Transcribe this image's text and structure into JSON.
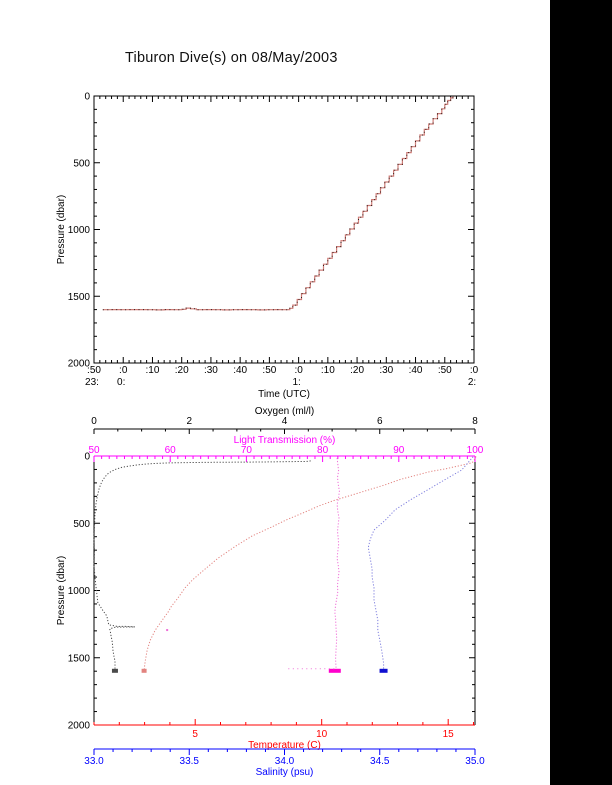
{
  "chart_data": [
    {
      "type": "line",
      "name": "dive-depth-vs-time",
      "title": "Tiburon Dive(s) on 08/May/2003",
      "xlabel": "Time (UTC)",
      "ylabel": "Pressure (dbar)",
      "x_range": [
        0,
        130
      ],
      "x_major_step": 10,
      "x_minor_step": 2,
      "x_ticks": [
        {
          "label": ":50",
          "hour": "23:"
        },
        {
          "label": ":0",
          "hour": "0:"
        },
        {
          "label": ":10"
        },
        {
          "label": ":20"
        },
        {
          "label": ":30"
        },
        {
          "label": ":40"
        },
        {
          "label": ":50"
        },
        {
          "label": ":0",
          "hour": "1:"
        },
        {
          "label": ":10"
        },
        {
          "label": ":20"
        },
        {
          "label": ":30"
        },
        {
          "label": ":40"
        },
        {
          "label": ":50"
        },
        {
          "label": ":0",
          "hour": "2:"
        }
      ],
      "ylim": [
        0,
        2000
      ],
      "y_major_step": 500,
      "y_minor_step": 100,
      "y_ticks": [
        "0",
        "500",
        "1000",
        "1500",
        "2000"
      ],
      "series": [
        {
          "name": "dive-profile",
          "style": "steps",
          "color": "#cf7d78",
          "overlay_color": "#30201c",
          "points": [
            [
              3,
              1601
            ],
            [
              6,
              1600
            ],
            [
              9,
              1601
            ],
            [
              12,
              1600
            ],
            [
              15,
              1600
            ],
            [
              18,
              1601
            ],
            [
              21,
              1602
            ],
            [
              24,
              1600
            ],
            [
              27,
              1601
            ],
            [
              30,
              1598
            ],
            [
              31.5,
              1589
            ],
            [
              33,
              1594
            ],
            [
              35,
              1601
            ],
            [
              38,
              1600
            ],
            [
              41,
              1601
            ],
            [
              44,
              1602
            ],
            [
              47,
              1601
            ],
            [
              50,
              1600
            ],
            [
              53,
              1601
            ],
            [
              56,
              1602
            ],
            [
              59,
              1601
            ],
            [
              62,
              1600
            ],
            [
              64,
              1601
            ],
            [
              66,
              1601
            ],
            [
              67,
              1590
            ],
            [
              68,
              1566
            ],
            [
              69.5,
              1524
            ],
            [
              71,
              1480
            ],
            [
              72.5,
              1436
            ],
            [
              74,
              1392
            ],
            [
              75.5,
              1348
            ],
            [
              77,
              1304
            ],
            [
              78.5,
              1260
            ],
            [
              80,
              1216
            ],
            [
              81.5,
              1172
            ],
            [
              83,
              1128
            ],
            [
              84.5,
              1084
            ],
            [
              86,
              1040
            ],
            [
              87.5,
              996
            ],
            [
              89,
              952
            ],
            [
              90.5,
              908
            ],
            [
              92,
              864
            ],
            [
              93.5,
              820
            ],
            [
              95,
              776
            ],
            [
              96.5,
              732
            ],
            [
              98,
              688
            ],
            [
              99.5,
              644
            ],
            [
              101,
              600
            ],
            [
              102.5,
              556
            ],
            [
              104,
              512
            ],
            [
              105.5,
              468
            ],
            [
              107,
              424
            ],
            [
              108.5,
              380
            ],
            [
              110,
              336
            ],
            [
              111.5,
              292
            ],
            [
              113,
              250
            ],
            [
              114.5,
              210
            ],
            [
              116,
              170
            ],
            [
              117.5,
              132
            ],
            [
              119,
              96
            ],
            [
              120,
              62
            ],
            [
              121,
              34
            ],
            [
              122,
              14
            ],
            [
              122.8,
              4
            ]
          ]
        }
      ]
    },
    {
      "type": "scatter",
      "name": "ctd-profiles-vs-pressure",
      "ylabel": "Pressure (dbar)",
      "ylim": [
        0,
        2000
      ],
      "y_major_step": 500,
      "y_minor_step": 100,
      "y_ticks": [
        "0",
        "500",
        "1000",
        "1500",
        "2000"
      ],
      "x_axes": {
        "oxygen": {
          "label": "Oxygen (ml/l)",
          "color": "#000000",
          "range": [
            0,
            8
          ],
          "major_ticks": [
            0,
            2,
            4,
            6,
            8
          ],
          "tick_labels": [
            "0",
            "2",
            "4",
            "6",
            "8"
          ],
          "minor_step": 0.5,
          "position": "floating-top"
        },
        "light": {
          "label": "Light Transmission (%)",
          "color": "#ff00ff",
          "range": [
            50,
            100
          ],
          "major_ticks": [
            50,
            60,
            70,
            80,
            90,
            100
          ],
          "tick_labels": [
            "50",
            "60",
            "70",
            "80",
            "90",
            "100"
          ],
          "minor_step": 1,
          "position": "top-border"
        },
        "temperature": {
          "label": "Temperature (C)",
          "color": "#ff0000",
          "range": [
            1,
            16.06
          ],
          "major_ticks": [
            5,
            10,
            15
          ],
          "tick_labels": [
            "5",
            "10",
            "15"
          ],
          "minor_step": 1,
          "position": "bottom-border"
        },
        "salinity": {
          "label": "Salinity (psu)",
          "color": "#0000ff",
          "range": [
            33,
            35
          ],
          "major_ticks": [
            33,
            33.5,
            34,
            34.5,
            35
          ],
          "tick_labels": [
            "33.0",
            "33.5",
            "34.0",
            "34.5",
            "35.0"
          ],
          "minor_step": 0.1,
          "position": "floating-bottom"
        }
      },
      "series": [
        {
          "name": "oxygen-profile",
          "axis": "oxygen",
          "color": "#4a4a4a",
          "bottom_mark": [
            0.44,
            1597
          ],
          "bottom_mark_width": 6,
          "points": [
            [
              4.55,
              36
            ],
            [
              4.5,
              40
            ],
            [
              4.15,
              42
            ],
            [
              3.7,
              44
            ],
            [
              3.25,
              45
            ],
            [
              2.85,
              46
            ],
            [
              2.5,
              47
            ],
            [
              2.1,
              48
            ],
            [
              1.8,
              50
            ],
            [
              1.5,
              52
            ],
            [
              1.25,
              56
            ],
            [
              1.05,
              61
            ],
            [
              0.9,
              67
            ],
            [
              0.73,
              75
            ],
            [
              0.58,
              85
            ],
            [
              0.46,
              98
            ],
            [
              0.36,
              115
            ],
            [
              0.28,
              135
            ],
            [
              0.22,
              160
            ],
            [
              0.16,
              195
            ],
            [
              0.11,
              240
            ],
            [
              0.07,
              300
            ],
            [
              0.04,
              360
            ],
            [
              0.02,
              430
            ],
            [
              0.01,
              520
            ],
            [
              0,
              620
            ],
            [
              0.01,
              720
            ],
            [
              0,
              820
            ],
            [
              0.02,
              900
            ],
            [
              0.04,
              965
            ],
            [
              0.06,
              1030
            ],
            [
              0.08,
              1090
            ],
            [
              0.19,
              1150
            ],
            [
              0.27,
              1190
            ],
            [
              0.29,
              1225
            ],
            [
              0.31,
              1255
            ],
            [
              0.5,
              1268
            ],
            [
              0.62,
              1266
            ],
            [
              0.86,
              1271
            ],
            [
              0.45,
              1273
            ],
            [
              0.33,
              1285
            ],
            [
              0.34,
              1300
            ],
            [
              0.36,
              1340
            ],
            [
              0.38,
              1375
            ],
            [
              0.39,
              1410
            ],
            [
              0.4,
              1450
            ],
            [
              0.42,
              1490
            ],
            [
              0.44,
              1525
            ],
            [
              0.44,
              1560
            ],
            [
              0.44,
              1595
            ]
          ]
        },
        {
          "name": "temperature-profile",
          "axis": "temperature",
          "color": "#e2837f",
          "bottom_mark": [
            2.98,
            1597
          ],
          "bottom_mark_width": 5,
          "points": [
            [
              16.1,
              4
            ],
            [
              16.05,
              25
            ],
            [
              15.95,
              50
            ],
            [
              15.5,
              70
            ],
            [
              14.9,
              95
            ],
            [
              14.3,
              115
            ],
            [
              13.8,
              140
            ],
            [
              13.1,
              175
            ],
            [
              12.5,
              215
            ],
            [
              11.8,
              255
            ],
            [
              11.2,
              290
            ],
            [
              10.5,
              330
            ],
            [
              9.9,
              370
            ],
            [
              9.3,
              420
            ],
            [
              8.6,
              475
            ],
            [
              8,
              530
            ],
            [
              7.25,
              595
            ],
            [
              6.6,
              670
            ],
            [
              5.9,
              760
            ],
            [
              5.3,
              855
            ],
            [
              4.9,
              920
            ],
            [
              4.6,
              980
            ],
            [
              4.3,
              1060
            ],
            [
              4.05,
              1120
            ],
            [
              3.95,
              1155
            ],
            [
              3.7,
              1220
            ],
            [
              3.42,
              1295
            ],
            [
              3.22,
              1370
            ],
            [
              3.1,
              1445
            ],
            [
              3.02,
              1530
            ],
            [
              2.98,
              1595
            ]
          ]
        },
        {
          "name": "light-transmission-profile",
          "axis": "light",
          "color": "#ef6fd7",
          "bottom_mark": [
            81.6,
            1597
          ],
          "bottom_mark_width": 12,
          "bottom_mark_color": "#ff00cc",
          "bottom_scatter": {
            "pressure": 1582,
            "from": 75.5,
            "to": 82.0
          },
          "stray_points": [
            [
              59.6,
              1294
            ]
          ],
          "points": [
            [
              81.9,
              15
            ],
            [
              82,
              60
            ],
            [
              82.1,
              110
            ],
            [
              81.95,
              160
            ],
            [
              82.05,
              210
            ],
            [
              82.2,
              260
            ],
            [
              82.1,
              310
            ],
            [
              81.9,
              360
            ],
            [
              82,
              410
            ],
            [
              82.15,
              460
            ],
            [
              82.05,
              510
            ],
            [
              81.95,
              560
            ],
            [
              82.05,
              610
            ],
            [
              82.1,
              660
            ],
            [
              82,
              710
            ],
            [
              81.9,
              760
            ],
            [
              82.05,
              810
            ],
            [
              82.15,
              860
            ],
            [
              82.05,
              910
            ],
            [
              81.95,
              960
            ],
            [
              82,
              1010
            ],
            [
              81.85,
              1060
            ],
            [
              81.7,
              1110
            ],
            [
              81.6,
              1160
            ],
            [
              81.7,
              1210
            ],
            [
              81.75,
              1260
            ],
            [
              81.8,
              1310
            ],
            [
              81.85,
              1360
            ],
            [
              81.8,
              1410
            ],
            [
              81.75,
              1460
            ],
            [
              81.7,
              1510
            ],
            [
              81.75,
              1560
            ],
            [
              81.8,
              1590
            ]
          ]
        },
        {
          "name": "salinity-profile",
          "axis": "salinity",
          "color": "#7e7ede",
          "bottom_mark": [
            34.52,
            1597
          ],
          "bottom_mark_width": 8,
          "bottom_mark_color": "#0f0fd0",
          "points": [
            [
              34.99,
              6
            ],
            [
              34.93,
              104
            ],
            [
              34.84,
              178
            ],
            [
              34.75,
              253
            ],
            [
              34.66,
              327
            ],
            [
              34.58,
              401
            ],
            [
              34.53,
              476
            ],
            [
              34.47,
              550
            ],
            [
              34.45,
              620
            ],
            [
              34.44,
              680
            ],
            [
              34.45,
              760
            ],
            [
              34.46,
              840
            ],
            [
              34.46,
              900
            ],
            [
              34.47,
              980
            ],
            [
              34.47,
              1070
            ],
            [
              34.48,
              1145
            ],
            [
              34.49,
              1220
            ],
            [
              34.49,
              1295
            ],
            [
              34.5,
              1370
            ],
            [
              34.51,
              1445
            ],
            [
              34.52,
              1539
            ],
            [
              34.52,
              1595
            ]
          ]
        }
      ]
    }
  ]
}
